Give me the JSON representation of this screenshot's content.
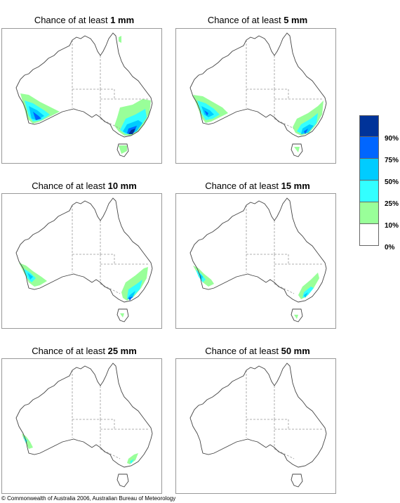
{
  "panels": [
    {
      "prefix": "Chance of at least ",
      "amount": "1 mm"
    },
    {
      "prefix": "Chance of at least ",
      "amount": "5 mm"
    },
    {
      "prefix": "Chance of at least ",
      "amount": "10 mm"
    },
    {
      "prefix": "Chance of at least ",
      "amount": "15 mm"
    },
    {
      "prefix": "Chance of at least ",
      "amount": "25 mm"
    },
    {
      "prefix": "Chance of at least ",
      "amount": "50 mm"
    }
  ],
  "legend": {
    "labels": [
      "90%",
      "75%",
      "50%",
      "25%",
      "10%",
      "0%"
    ],
    "colors": [
      "#003399",
      "#0066ff",
      "#00ccff",
      "#33ffff",
      "#99ff99",
      "#ffffff"
    ]
  },
  "copyright": "© Commonwealth of Australia 2006, Australian Bureau of Meteorology"
}
